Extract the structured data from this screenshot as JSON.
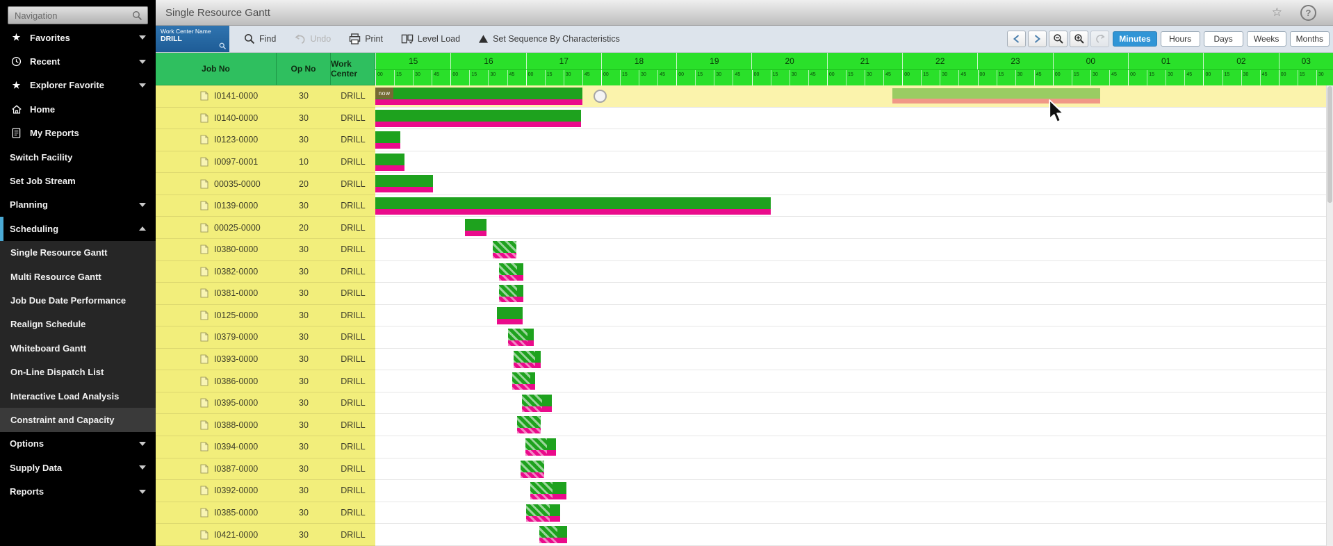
{
  "nav": {
    "placeholder": "Navigation"
  },
  "header": {
    "title": "Single Resource Gantt"
  },
  "sidebar": {
    "items": [
      {
        "label": "Favorites",
        "icon": "star",
        "chevron": "down"
      },
      {
        "label": "Recent",
        "icon": "clock",
        "chevron": "down"
      },
      {
        "label": "Explorer Favorite",
        "icon": "star",
        "chevron": "down"
      },
      {
        "label": "Home",
        "icon": "home"
      },
      {
        "label": "My Reports",
        "icon": "report"
      },
      {
        "label": "Switch Facility"
      },
      {
        "label": "Set Job Stream"
      },
      {
        "label": "Planning",
        "chevron": "down"
      },
      {
        "label": "Scheduling",
        "chevron": "up",
        "parent_active": true
      },
      {
        "label": "Single Resource Gantt",
        "sub": true
      },
      {
        "label": "Multi Resource Gantt",
        "sub": true
      },
      {
        "label": "Job Due Date Performance",
        "sub": true
      },
      {
        "label": "Realign Schedule",
        "sub": true
      },
      {
        "label": "Whiteboard Gantt",
        "sub": true
      },
      {
        "label": "On-Line Dispatch List",
        "sub": true
      },
      {
        "label": "Interactive Load Analysis",
        "sub": true
      },
      {
        "label": "Constraint and Capacity",
        "sub": true,
        "highlight": true
      },
      {
        "label": "Options",
        "chevron": "down"
      },
      {
        "label": "Supply Data",
        "chevron": "down"
      },
      {
        "label": "Reports",
        "chevron": "down"
      }
    ]
  },
  "toolbar": {
    "work_center": {
      "label": "Work Center Name",
      "value": "DRILL"
    },
    "buttons": [
      {
        "label": "Find",
        "icon": "magnifier"
      },
      {
        "label": "Undo",
        "icon": "undo",
        "disabled": true
      },
      {
        "label": "Print",
        "icon": "printer"
      },
      {
        "label": "Level Load",
        "icon": "level-load"
      },
      {
        "label": "Set Sequence By Characteristics",
        "icon": "triangle"
      }
    ],
    "nav_zoom_buttons": [
      "prev",
      "next",
      "zoom-out",
      "zoom-in",
      "reset-zoom"
    ],
    "scales": [
      "Minutes",
      "Hours",
      "Days",
      "Weeks",
      "Months"
    ],
    "active_scale": "Minutes"
  },
  "table": {
    "columns": [
      "Job No",
      "Op No",
      "Work Center"
    ]
  },
  "chart_data": {
    "type": "gantt",
    "time_axis": {
      "unit": "Minutes",
      "hours": [
        "15",
        "16",
        "17",
        "18",
        "19",
        "20",
        "21",
        "22",
        "23",
        "00",
        "01",
        "02",
        "03"
      ],
      "minute_ticks": [
        "00",
        "15",
        "30",
        "45"
      ],
      "start_hour_label": "15",
      "hours_visible": 12.72
    },
    "now_marker": {
      "label": "now",
      "at_hours": 0
    },
    "rows": [
      {
        "job": "I0141-0000",
        "op": "30",
        "work_center": "DRILL",
        "selected": true,
        "bar": {
          "start": 0,
          "end": 2.75,
          "hatch_end": 0
        },
        "marker_at": 2.9,
        "ghost": {
          "start": 6.87,
          "end": 9.63
        }
      },
      {
        "job": "I0140-0000",
        "op": "30",
        "work_center": "DRILL",
        "bar": {
          "start": 0,
          "end": 2.73,
          "hatch_end": 0
        }
      },
      {
        "job": "I0123-0000",
        "op": "30",
        "work_center": "DRILL",
        "bar": {
          "start": 0,
          "end": 0.33,
          "hatch_end": 0
        }
      },
      {
        "job": "I0097-0001",
        "op": "10",
        "work_center": "DRILL",
        "bar": {
          "start": 0,
          "end": 0.39,
          "hatch_end": 0
        }
      },
      {
        "job": "00035-0000",
        "op": "20",
        "work_center": "DRILL",
        "bar": {
          "start": 0,
          "end": 0.77,
          "hatch_end": 0
        }
      },
      {
        "job": "I0139-0000",
        "op": "30",
        "work_center": "DRILL",
        "bar": {
          "start": 0,
          "end": 5.25,
          "hatch_end": 0
        }
      },
      {
        "job": "00025-0000",
        "op": "20",
        "work_center": "DRILL",
        "bar": {
          "start": 1.19,
          "end": 1.48,
          "hatch_end": 0
        }
      },
      {
        "job": "I0380-0000",
        "op": "30",
        "work_center": "DRILL",
        "bar": {
          "start": 1.56,
          "end": 1.87,
          "hatch_end": 1.87
        }
      },
      {
        "job": "I0382-0000",
        "op": "30",
        "work_center": "DRILL",
        "bar": {
          "start": 1.64,
          "end": 1.97,
          "hatch_end": 1.88
        }
      },
      {
        "job": "I0381-0000",
        "op": "30",
        "work_center": "DRILL",
        "bar": {
          "start": 1.64,
          "end": 1.97,
          "hatch_end": 1.88
        }
      },
      {
        "job": "I0125-0000",
        "op": "30",
        "work_center": "DRILL",
        "bar": {
          "start": 1.62,
          "end": 1.96,
          "hatch_end": 0
        }
      },
      {
        "job": "I0379-0000",
        "op": "30",
        "work_center": "DRILL",
        "bar": {
          "start": 1.76,
          "end": 2.11,
          "hatch_end": 2.02
        }
      },
      {
        "job": "I0393-0000",
        "op": "30",
        "work_center": "DRILL",
        "bar": {
          "start": 1.84,
          "end": 2.2,
          "hatch_end": 2.12
        }
      },
      {
        "job": "I0386-0000",
        "op": "30",
        "work_center": "DRILL",
        "bar": {
          "start": 1.82,
          "end": 2.12,
          "hatch_end": 2.06
        }
      },
      {
        "job": "I0395-0000",
        "op": "30",
        "work_center": "DRILL",
        "bar": {
          "start": 1.95,
          "end": 2.35,
          "hatch_end": 2.22
        }
      },
      {
        "job": "I0388-0000",
        "op": "30",
        "work_center": "DRILL",
        "bar": {
          "start": 1.88,
          "end": 2.2,
          "hatch_end": 2.2
        }
      },
      {
        "job": "I0394-0000",
        "op": "30",
        "work_center": "DRILL",
        "bar": {
          "start": 1.99,
          "end": 2.4,
          "hatch_end": 2.28
        }
      },
      {
        "job": "I0387-0000",
        "op": "30",
        "work_center": "DRILL",
        "bar": {
          "start": 1.93,
          "end": 2.24,
          "hatch_end": 2.24
        }
      },
      {
        "job": "I0392-0000",
        "op": "30",
        "work_center": "DRILL",
        "bar": {
          "start": 2.06,
          "end": 2.54,
          "hatch_end": 2.35
        }
      },
      {
        "job": "I0385-0000",
        "op": "30",
        "work_center": "DRILL",
        "bar": {
          "start": 2.0,
          "end": 2.46,
          "hatch_end": 2.32
        }
      },
      {
        "job": "I0421-0000",
        "op": "30",
        "work_center": "DRILL",
        "bar": {
          "start": 2.18,
          "end": 2.55,
          "hatch_end": 2.42
        }
      }
    ]
  },
  "colors": {
    "timeline_green": "#2ae02a",
    "table_header_green": "#2fbf5f",
    "row_yellow": "#f2ee7b",
    "selected_row_yellow": "#fbf3ac",
    "bar_green": "#1ea21e",
    "bar_stripe_magenta": "#ea0b8b",
    "ghost_green": "#90c85c",
    "ghost_stripe_salmon": "#ef8f84",
    "active_button_blue": "#3095d6",
    "work_center_box_blue": "#1e5c96",
    "scheduling_accent_cyan": "#4aa9d4",
    "now_tag_olive": "#746a33"
  }
}
